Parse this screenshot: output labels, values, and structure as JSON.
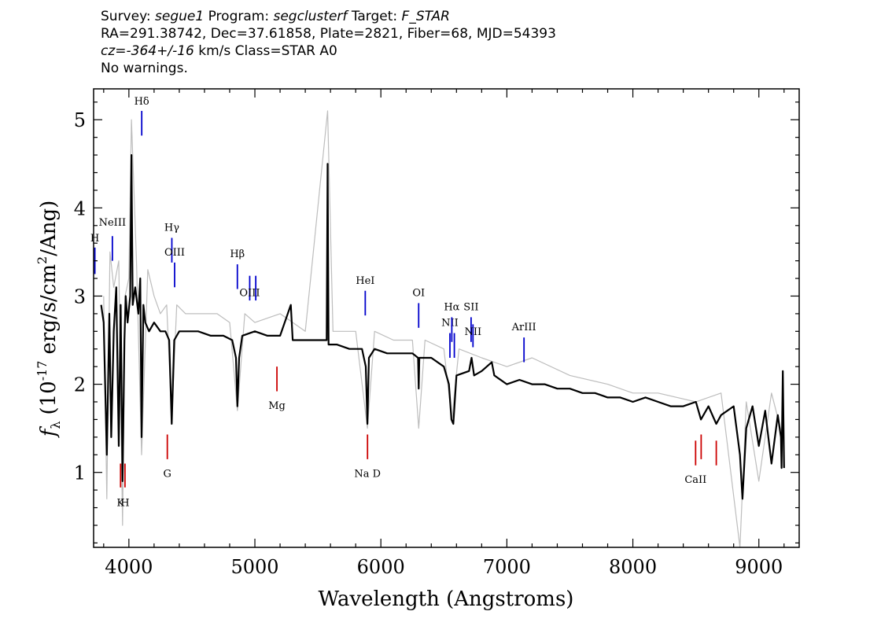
{
  "header": {
    "survey_label": "Survey:",
    "survey_value": "segue1",
    "program_label": "Program:",
    "program_value": "segclusterf",
    "target_label": "Target:",
    "target_value": "F_STAR",
    "line2": "RA=291.38742, Dec=37.61858, Plate=2821, Fiber=68, MJD=54393",
    "cz_value": "cz=-364+/-16",
    "cz_rest": "km/s Class=STAR A0",
    "line4": "No warnings."
  },
  "chart_data": {
    "type": "line",
    "xlabel": "Wavelength (Angstroms)",
    "ylabel_prefix": "f",
    "ylabel_sub": "λ",
    "ylabel_main": "(10",
    "ylabel_exp": "-17",
    "ylabel_mid": "erg/s/cm",
    "ylabel_exp2": "2",
    "ylabel_end": "/Ang)",
    "xlim": [
      3720,
      9320
    ],
    "ylim": [
      0.15,
      5.35
    ],
    "xticks": [
      4000,
      5000,
      6000,
      7000,
      8000,
      9000
    ],
    "yticks": [
      1,
      2,
      3,
      4,
      5
    ],
    "series": [
      {
        "color": "#bdbdbd",
        "kind": "flux-noise",
        "x": [
          3800,
          3825,
          3850,
          3880,
          3920,
          3950,
          3970,
          4000,
          4020,
          4060,
          4101,
          4150,
          4200,
          4250,
          4300,
          4340,
          4380,
          4450,
          4550,
          4700,
          4800,
          4861,
          4920,
          5000,
          5200,
          5400,
          5577,
          5620,
          5800,
          5893,
          5950,
          6100,
          6250,
          6300,
          6350,
          6500,
          6563,
          6620,
          6800,
          7000,
          7200,
          7500,
          7800,
          8000,
          8200,
          8500,
          8700,
          8850,
          8900,
          9000,
          9100,
          9190
        ],
        "y": [
          3.0,
          0.7,
          3.5,
          3.1,
          3.4,
          0.4,
          3.0,
          3.2,
          5.0,
          3.4,
          1.2,
          3.3,
          3.0,
          2.8,
          2.9,
          1.6,
          2.9,
          2.8,
          2.8,
          2.8,
          2.7,
          1.7,
          2.8,
          2.7,
          2.8,
          2.6,
          5.1,
          2.6,
          2.6,
          1.5,
          2.6,
          2.5,
          2.5,
          1.5,
          2.5,
          2.4,
          1.6,
          2.4,
          2.3,
          2.2,
          2.3,
          2.1,
          2.0,
          1.9,
          1.9,
          1.8,
          1.9,
          0.15,
          1.8,
          0.9,
          1.9,
          1.4
        ]
      },
      {
        "color": "#000000",
        "kind": "flux-smoothed",
        "x": [
          3780,
          3800,
          3825,
          3845,
          3860,
          3880,
          3900,
          3920,
          3935,
          3950,
          3965,
          3975,
          3990,
          4010,
          4020,
          4030,
          4050,
          4075,
          4090,
          4101,
          4115,
          4130,
          4160,
          4200,
          4250,
          4290,
          4320,
          4340,
          4360,
          4400,
          4470,
          4550,
          4650,
          4750,
          4820,
          4850,
          4861,
          4875,
          4900,
          5000,
          5100,
          5200,
          5285,
          5300,
          5400,
          5500,
          5570,
          5577,
          5585,
          5650,
          5750,
          5850,
          5880,
          5893,
          5905,
          5950,
          6050,
          6150,
          6250,
          6295,
          6300,
          6305,
          6400,
          6500,
          6540,
          6560,
          6575,
          6600,
          6700,
          6720,
          6740,
          6800,
          6880,
          6900,
          7000,
          7100,
          7200,
          7300,
          7400,
          7500,
          7600,
          7700,
          7800,
          7900,
          8000,
          8100,
          8200,
          8300,
          8400,
          8500,
          8540,
          8600,
          8662,
          8700,
          8800,
          8850,
          8870,
          8900,
          8950,
          9000,
          9050,
          9100,
          9150,
          9175,
          9180,
          9190,
          9200
        ],
        "y": [
          2.9,
          2.7,
          1.2,
          2.8,
          1.4,
          2.6,
          3.1,
          1.3,
          2.9,
          0.9,
          2.5,
          3.0,
          2.7,
          3.0,
          4.6,
          2.9,
          3.1,
          2.8,
          3.2,
          1.4,
          2.9,
          2.7,
          2.6,
          2.7,
          2.6,
          2.6,
          2.5,
          1.55,
          2.5,
          2.6,
          2.6,
          2.6,
          2.55,
          2.55,
          2.5,
          2.3,
          1.75,
          2.3,
          2.55,
          2.6,
          2.55,
          2.55,
          2.9,
          2.5,
          2.5,
          2.5,
          2.5,
          4.5,
          2.45,
          2.45,
          2.4,
          2.4,
          2.2,
          1.55,
          2.3,
          2.4,
          2.35,
          2.35,
          2.35,
          2.3,
          1.95,
          2.3,
          2.3,
          2.2,
          2.0,
          1.6,
          1.55,
          2.1,
          2.15,
          2.3,
          2.1,
          2.15,
          2.25,
          2.1,
          2.0,
          2.05,
          2.0,
          2.0,
          1.95,
          1.95,
          1.9,
          1.9,
          1.85,
          1.85,
          1.8,
          1.85,
          1.8,
          1.75,
          1.75,
          1.8,
          1.6,
          1.75,
          1.55,
          1.65,
          1.75,
          1.2,
          0.7,
          1.5,
          1.75,
          1.3,
          1.7,
          1.1,
          1.65,
          1.4,
          1.05,
          2.15,
          1.05
        ]
      }
    ],
    "emission_lines": [
      {
        "label": "H",
        "x": 3730,
        "y0": 3.25,
        "y1": 3.55,
        "label_y": 3.62,
        "color": "#0000cc"
      },
      {
        "label": "NeIII",
        "x": 3869,
        "y0": 3.4,
        "y1": 3.68,
        "label_y": 3.8,
        "color": "#0000cc"
      },
      {
        "label": "Hδ",
        "x": 4102,
        "y0": 4.82,
        "y1": 5.1,
        "label_y": 5.17,
        "color": "#0000cc"
      },
      {
        "label": "Hγ",
        "x": 4341,
        "y0": 3.38,
        "y1": 3.66,
        "label_y": 3.74,
        "color": "#0000cc"
      },
      {
        "label": "OIII",
        "x": 4363,
        "y0": 3.1,
        "y1": 3.38,
        "label_y": 3.46,
        "color": "#0000cc"
      },
      {
        "label": "Hβ",
        "x": 4861,
        "y0": 3.08,
        "y1": 3.36,
        "label_y": 3.44,
        "color": "#0000cc"
      },
      {
        "label": "OIII",
        "x": 4959,
        "y0": 2.95,
        "y1": 3.23,
        "label_y": 3.0,
        "color": "#0000cc"
      },
      {
        "label": "",
        "x": 5007,
        "y0": 2.95,
        "y1": 3.23,
        "label_y": 3.0,
        "color": "#0000cc"
      },
      {
        "label": "HeI",
        "x": 5876,
        "y0": 2.78,
        "y1": 3.06,
        "label_y": 3.14,
        "color": "#0000cc"
      },
      {
        "label": "OI",
        "x": 6300,
        "y0": 2.64,
        "y1": 2.92,
        "label_y": 3.0,
        "color": "#0000cc"
      },
      {
        "label": "NII",
        "x": 6548,
        "y0": 2.3,
        "y1": 2.58,
        "label_y": 2.66,
        "color": "#0000cc"
      },
      {
        "label": "Hα",
        "x": 6563,
        "y0": 2.48,
        "y1": 2.76,
        "label_y": 2.84,
        "color": "#0000cc"
      },
      {
        "label": "",
        "x": 6583,
        "y0": 2.3,
        "y1": 2.58,
        "label_y": 2.66,
        "color": "#0000cc"
      },
      {
        "label": "SII",
        "x": 6716,
        "y0": 2.48,
        "y1": 2.76,
        "label_y": 2.84,
        "color": "#0000cc"
      },
      {
        "label": "NII",
        "x": 6731,
        "y0": 2.42,
        "y1": 2.68,
        "label_y": 2.56,
        "color": "#0000cc"
      },
      {
        "label": "ArIII",
        "x": 7136,
        "y0": 2.25,
        "y1": 2.53,
        "label_y": 2.61,
        "color": "#0000cc"
      }
    ],
    "absorption_lines": [
      {
        "label": "K",
        "x": 3934,
        "y0": 0.83,
        "y1": 1.1,
        "label_y": 0.62,
        "color": "#cc0000"
      },
      {
        "label": "H",
        "x": 3969,
        "y0": 0.83,
        "y1": 1.1,
        "label_y": 0.62,
        "color": "#cc0000"
      },
      {
        "label": "G",
        "x": 4305,
        "y0": 1.15,
        "y1": 1.43,
        "label_y": 0.95,
        "color": "#cc0000"
      },
      {
        "label": "Mg",
        "x": 5175,
        "y0": 1.92,
        "y1": 2.2,
        "label_y": 1.72,
        "color": "#cc0000"
      },
      {
        "label": "Na  D",
        "x": 5894,
        "y0": 1.15,
        "y1": 1.43,
        "label_y": 0.95,
        "color": "#cc0000"
      },
      {
        "label": "CaII",
        "x": 8498,
        "y0": 1.08,
        "y1": 1.36,
        "label_y": 0.88,
        "color": "#cc0000"
      },
      {
        "label": "",
        "x": 8542,
        "y0": 1.15,
        "y1": 1.43,
        "label_y": 0.88,
        "color": "#cc0000"
      },
      {
        "label": "",
        "x": 8662,
        "y0": 1.08,
        "y1": 1.36,
        "label_y": 0.88,
        "color": "#cc0000"
      }
    ]
  }
}
